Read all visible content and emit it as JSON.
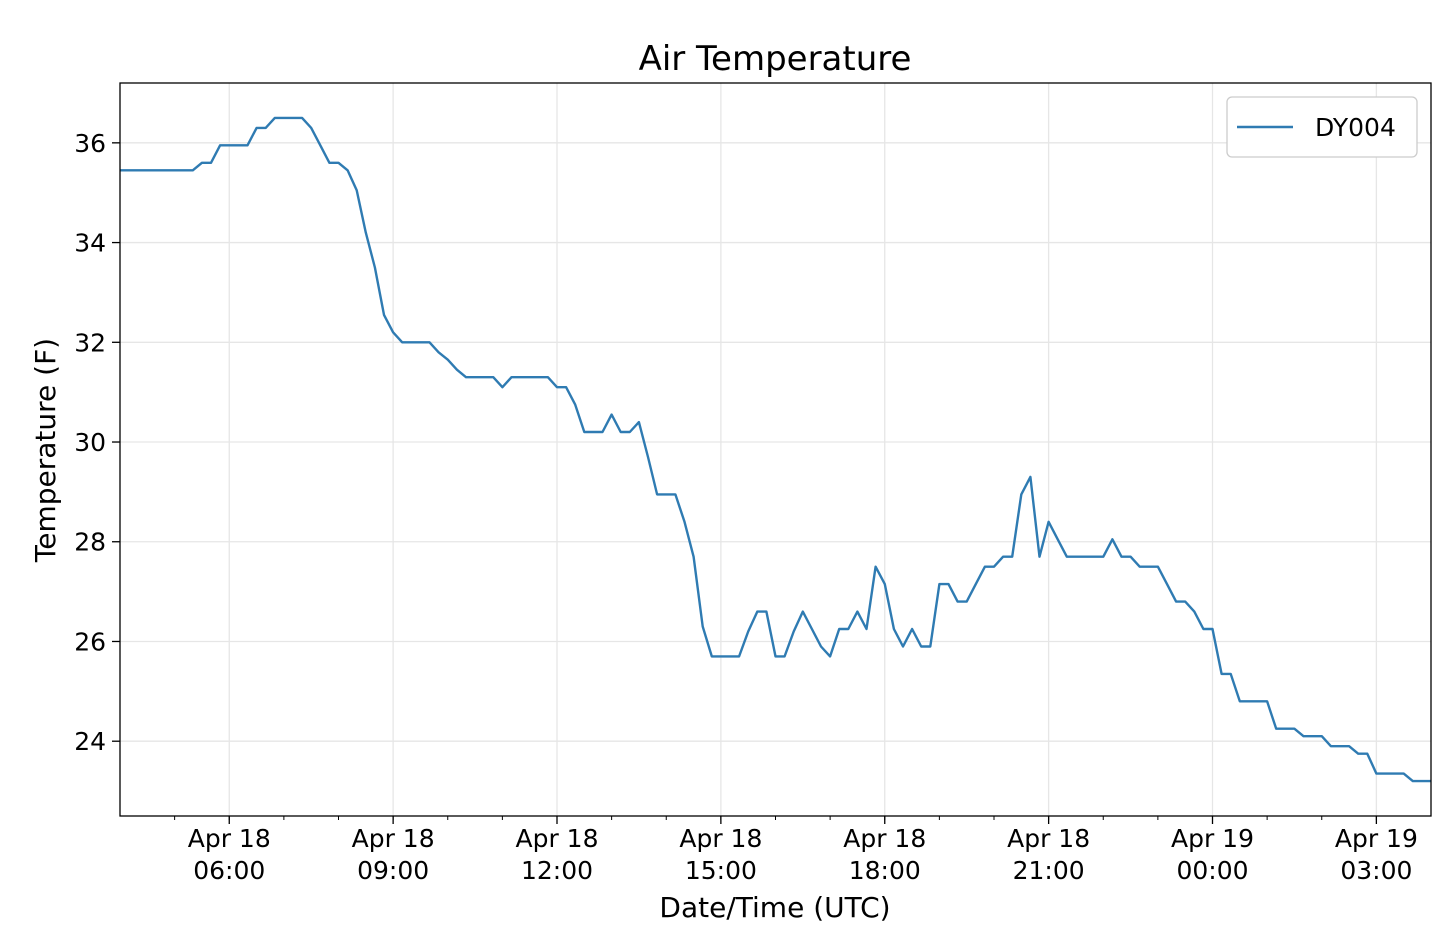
{
  "chart_data": {
    "type": "line",
    "title": "Air Temperature",
    "xlabel": "Date/Time (UTC)",
    "ylabel": "Temperature (F)",
    "x_unit": "UTC datetime",
    "xlim": [
      "2019-04-18T04:00",
      "2019-04-19T04:00"
    ],
    "ylim": [
      22.5,
      37.2
    ],
    "grid": true,
    "legend_position": "top-right",
    "x_major_ticks": [
      {
        "at": "2019-04-18T06:00",
        "label": [
          "Apr 18",
          "06:00"
        ]
      },
      {
        "at": "2019-04-18T09:00",
        "label": [
          "Apr 18",
          "09:00"
        ]
      },
      {
        "at": "2019-04-18T12:00",
        "label": [
          "Apr 18",
          "12:00"
        ]
      },
      {
        "at": "2019-04-18T15:00",
        "label": [
          "Apr 18",
          "15:00"
        ]
      },
      {
        "at": "2019-04-18T18:00",
        "label": [
          "Apr 18",
          "18:00"
        ]
      },
      {
        "at": "2019-04-18T21:00",
        "label": [
          "Apr 18",
          "21:00"
        ]
      },
      {
        "at": "2019-04-19T00:00",
        "label": [
          "Apr 19",
          "00:00"
        ]
      },
      {
        "at": "2019-04-19T03:00",
        "label": [
          "Apr 19",
          "03:00"
        ]
      }
    ],
    "y_ticks": [
      24,
      26,
      28,
      30,
      32,
      34,
      36
    ],
    "series": [
      {
        "name": "DY004",
        "color": "#2f7bb2",
        "points": [
          [
            "2019-04-18T04:00",
            35.45
          ],
          [
            "2019-04-18T05:20",
            35.45
          ],
          [
            "2019-04-18T05:30",
            35.6
          ],
          [
            "2019-04-18T05:40",
            35.6
          ],
          [
            "2019-04-18T05:50",
            35.95
          ],
          [
            "2019-04-18T06:20",
            35.95
          ],
          [
            "2019-04-18T06:30",
            36.3
          ],
          [
            "2019-04-18T06:40",
            36.3
          ],
          [
            "2019-04-18T06:50",
            36.5
          ],
          [
            "2019-04-18T07:20",
            36.5
          ],
          [
            "2019-04-18T07:30",
            36.3
          ],
          [
            "2019-04-18T07:40",
            35.95
          ],
          [
            "2019-04-18T07:50",
            35.6
          ],
          [
            "2019-04-18T08:00",
            35.6
          ],
          [
            "2019-04-18T08:10",
            35.45
          ],
          [
            "2019-04-18T08:20",
            35.05
          ],
          [
            "2019-04-18T08:30",
            34.2
          ],
          [
            "2019-04-18T08:40",
            33.5
          ],
          [
            "2019-04-18T08:50",
            32.55
          ],
          [
            "2019-04-18T09:00",
            32.2
          ],
          [
            "2019-04-18T09:10",
            32.0
          ],
          [
            "2019-04-18T09:40",
            32.0
          ],
          [
            "2019-04-18T09:50",
            31.8
          ],
          [
            "2019-04-18T10:00",
            31.65
          ],
          [
            "2019-04-18T10:10",
            31.45
          ],
          [
            "2019-04-18T10:20",
            31.3
          ],
          [
            "2019-04-18T10:50",
            31.3
          ],
          [
            "2019-04-18T11:00",
            31.1
          ],
          [
            "2019-04-18T11:10",
            31.3
          ],
          [
            "2019-04-18T11:50",
            31.3
          ],
          [
            "2019-04-18T12:00",
            31.1
          ],
          [
            "2019-04-18T12:10",
            31.1
          ],
          [
            "2019-04-18T12:20",
            30.75
          ],
          [
            "2019-04-18T12:30",
            30.2
          ],
          [
            "2019-04-18T12:50",
            30.2
          ],
          [
            "2019-04-18T13:00",
            30.55
          ],
          [
            "2019-04-18T13:10",
            30.2
          ],
          [
            "2019-04-18T13:20",
            30.2
          ],
          [
            "2019-04-18T13:30",
            30.4
          ],
          [
            "2019-04-18T13:40",
            29.7
          ],
          [
            "2019-04-18T13:50",
            28.95
          ],
          [
            "2019-04-18T14:10",
            28.95
          ],
          [
            "2019-04-18T14:20",
            28.4
          ],
          [
            "2019-04-18T14:30",
            27.7
          ],
          [
            "2019-04-18T14:40",
            26.3
          ],
          [
            "2019-04-18T14:50",
            25.7
          ],
          [
            "2019-04-18T15:20",
            25.7
          ],
          [
            "2019-04-18T15:30",
            26.2
          ],
          [
            "2019-04-18T15:40",
            26.6
          ],
          [
            "2019-04-18T15:50",
            26.6
          ],
          [
            "2019-04-18T16:00",
            25.7
          ],
          [
            "2019-04-18T16:10",
            25.7
          ],
          [
            "2019-04-18T16:20",
            26.2
          ],
          [
            "2019-04-18T16:30",
            26.6
          ],
          [
            "2019-04-18T16:40",
            26.25
          ],
          [
            "2019-04-18T16:50",
            25.9
          ],
          [
            "2019-04-18T17:00",
            25.7
          ],
          [
            "2019-04-18T17:10",
            26.25
          ],
          [
            "2019-04-18T17:20",
            26.25
          ],
          [
            "2019-04-18T17:30",
            26.6
          ],
          [
            "2019-04-18T17:40",
            26.25
          ],
          [
            "2019-04-18T17:50",
            27.5
          ],
          [
            "2019-04-18T18:00",
            27.15
          ],
          [
            "2019-04-18T18:10",
            26.25
          ],
          [
            "2019-04-18T18:20",
            25.9
          ],
          [
            "2019-04-18T18:30",
            26.25
          ],
          [
            "2019-04-18T18:40",
            25.9
          ],
          [
            "2019-04-18T18:50",
            25.9
          ],
          [
            "2019-04-18T19:00",
            27.15
          ],
          [
            "2019-04-18T19:10",
            27.15
          ],
          [
            "2019-04-18T19:20",
            26.8
          ],
          [
            "2019-04-18T19:30",
            26.8
          ],
          [
            "2019-04-18T19:40",
            27.15
          ],
          [
            "2019-04-18T19:50",
            27.5
          ],
          [
            "2019-04-18T20:00",
            27.5
          ],
          [
            "2019-04-18T20:10",
            27.7
          ],
          [
            "2019-04-18T20:20",
            27.7
          ],
          [
            "2019-04-18T20:30",
            28.95
          ],
          [
            "2019-04-18T20:40",
            29.3
          ],
          [
            "2019-04-18T20:50",
            27.7
          ],
          [
            "2019-04-18T21:00",
            28.4
          ],
          [
            "2019-04-18T21:10",
            28.05
          ],
          [
            "2019-04-18T21:20",
            27.7
          ],
          [
            "2019-04-18T22:00",
            27.7
          ],
          [
            "2019-04-18T22:10",
            28.05
          ],
          [
            "2019-04-18T22:20",
            27.7
          ],
          [
            "2019-04-18T22:30",
            27.7
          ],
          [
            "2019-04-18T22:40",
            27.5
          ],
          [
            "2019-04-18T23:00",
            27.5
          ],
          [
            "2019-04-18T23:10",
            27.15
          ],
          [
            "2019-04-18T23:20",
            26.8
          ],
          [
            "2019-04-18T23:30",
            26.8
          ],
          [
            "2019-04-18T23:40",
            26.6
          ],
          [
            "2019-04-18T23:50",
            26.25
          ],
          [
            "2019-04-19T00:00",
            26.25
          ],
          [
            "2019-04-19T00:10",
            25.35
          ],
          [
            "2019-04-19T00:20",
            25.35
          ],
          [
            "2019-04-19T00:30",
            24.8
          ],
          [
            "2019-04-19T01:00",
            24.8
          ],
          [
            "2019-04-19T01:10",
            24.25
          ],
          [
            "2019-04-19T01:30",
            24.25
          ],
          [
            "2019-04-19T01:40",
            24.1
          ],
          [
            "2019-04-19T02:00",
            24.1
          ],
          [
            "2019-04-19T02:10",
            23.9
          ],
          [
            "2019-04-19T02:30",
            23.9
          ],
          [
            "2019-04-19T02:40",
            23.75
          ],
          [
            "2019-04-19T02:50",
            23.75
          ],
          [
            "2019-04-19T03:00",
            23.35
          ],
          [
            "2019-04-19T03:30",
            23.35
          ],
          [
            "2019-04-19T03:40",
            23.2
          ],
          [
            "2019-04-19T04:00",
            23.2
          ]
        ]
      }
    ]
  }
}
